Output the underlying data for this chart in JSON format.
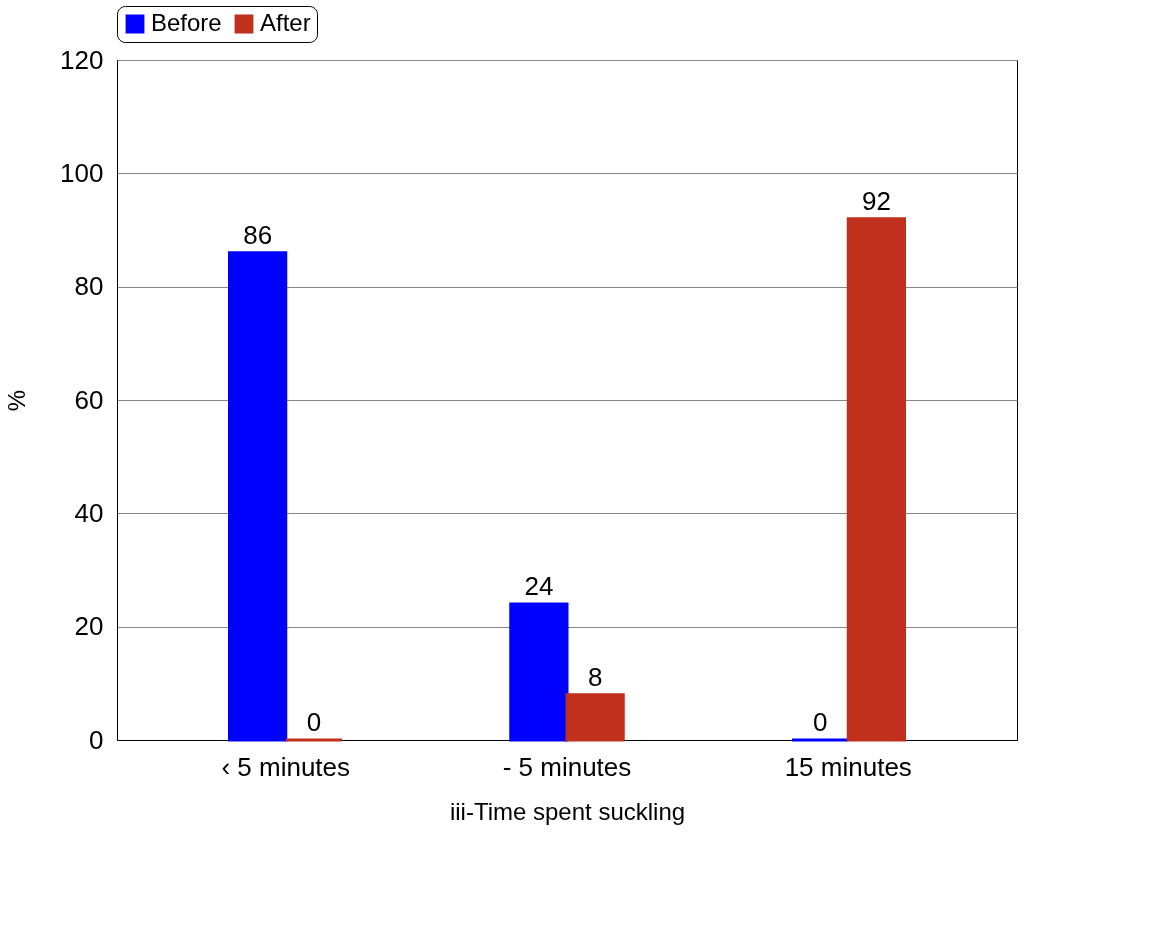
{
  "chart_data": {
    "type": "bar",
    "xlabel": "iii-Time spent suckling",
    "ylabel": "%",
    "categories": [
      "‹ 5 minutes",
      "- 5 minutes",
      "15 minutes"
    ],
    "series": [
      {
        "name": "Before",
        "color": "#0000ff",
        "values": [
          86,
          24,
          0
        ]
      },
      {
        "name": "After",
        "color": "#c0301c",
        "values": [
          0,
          8,
          92
        ]
      }
    ],
    "ylim": [
      0,
      120
    ],
    "yticks": [
      0,
      20,
      40,
      60,
      80,
      100,
      120
    ],
    "grid": "y",
    "legend": "top",
    "data_labels": true
  }
}
